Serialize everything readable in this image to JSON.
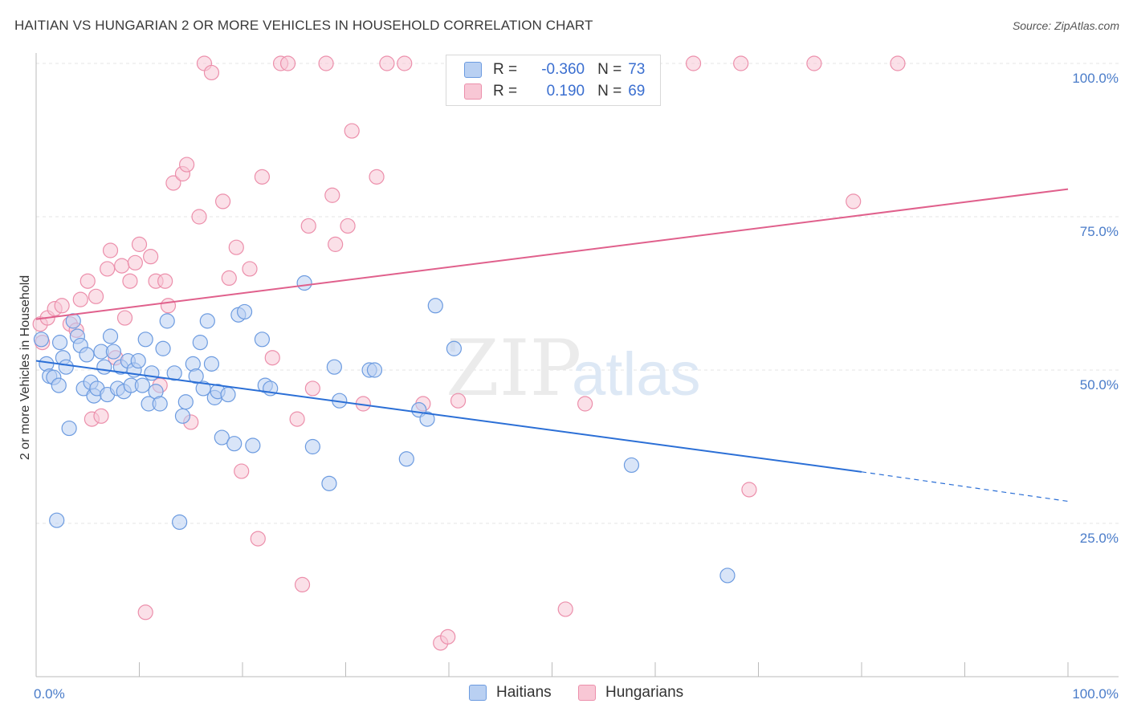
{
  "title": "HAITIAN VS HUNGARIAN 2 OR MORE VEHICLES IN HOUSEHOLD CORRELATION CHART",
  "source": "Source: ZipAtlas.com",
  "watermark": {
    "zip": "ZIP",
    "atlas": "atlas"
  },
  "legend": {
    "rows": [
      {
        "r_label": "R =",
        "r_value": "-0.360",
        "n_label": "N =",
        "n_value": "73",
        "fill": "#b9d0f2",
        "stroke": "#6c9be0"
      },
      {
        "r_label": "R =",
        "r_value": "0.190",
        "n_label": "N =",
        "n_value": "69",
        "fill": "#f8c7d5",
        "stroke": "#ec8fab"
      }
    ]
  },
  "bottom_legend": [
    {
      "label": "Haitians",
      "fill": "#b9d0f2",
      "stroke": "#6c9be0"
    },
    {
      "label": "Hungarians",
      "fill": "#f8c7d5",
      "stroke": "#ec8fab"
    }
  ],
  "chart_data": {
    "type": "scatter",
    "title": "HAITIAN VS HUNGARIAN 2 OR MORE VEHICLES IN HOUSEHOLD CORRELATION CHART",
    "xlabel": "",
    "ylabel": "2 or more Vehicles in Household",
    "xlim": [
      0,
      100
    ],
    "ylim": [
      0,
      100
    ],
    "x_tick_labels": [
      "0.0%",
      "100.0%"
    ],
    "y_tick_labels": [
      {
        "value": 25,
        "label": "25.0%"
      },
      {
        "value": 50,
        "label": "50.0%"
      },
      {
        "value": 75,
        "label": "75.0%"
      },
      {
        "value": 100,
        "label": "100.0%"
      }
    ],
    "grid": true,
    "legend_position": "top-center",
    "series": [
      {
        "name": "Haitians",
        "color": "#6c9be0",
        "fill": "#b9d0f2",
        "line_color": "#2b6fd6",
        "trend": {
          "x0": 0,
          "y0": 51.5,
          "x1": 80,
          "y1": 33.4,
          "dash_to_x": 100,
          "dash_to_y": 28.6
        },
        "points": [
          [
            0.5,
            55.0
          ],
          [
            1.0,
            51.0
          ],
          [
            1.3,
            49.0
          ],
          [
            1.7,
            48.8
          ],
          [
            2.0,
            25.5
          ],
          [
            2.2,
            47.5
          ],
          [
            2.3,
            54.5
          ],
          [
            2.6,
            52.0
          ],
          [
            2.9,
            50.5
          ],
          [
            3.2,
            40.5
          ],
          [
            3.6,
            58.0
          ],
          [
            4.0,
            55.5
          ],
          [
            4.3,
            54.0
          ],
          [
            4.6,
            47.0
          ],
          [
            4.9,
            52.5
          ],
          [
            5.3,
            48.0
          ],
          [
            5.6,
            45.8
          ],
          [
            5.9,
            47.0
          ],
          [
            6.3,
            53.0
          ],
          [
            6.6,
            50.5
          ],
          [
            6.9,
            46.0
          ],
          [
            7.2,
            55.5
          ],
          [
            7.5,
            53.0
          ],
          [
            7.9,
            47.0
          ],
          [
            8.2,
            50.5
          ],
          [
            8.5,
            46.5
          ],
          [
            8.9,
            51.5
          ],
          [
            9.2,
            47.5
          ],
          [
            9.5,
            50.0
          ],
          [
            9.9,
            51.5
          ],
          [
            10.3,
            47.5
          ],
          [
            10.6,
            55.0
          ],
          [
            10.9,
            44.5
          ],
          [
            11.2,
            49.5
          ],
          [
            11.6,
            46.5
          ],
          [
            12.0,
            44.5
          ],
          [
            12.3,
            53.5
          ],
          [
            12.7,
            58.0
          ],
          [
            13.4,
            49.5
          ],
          [
            13.9,
            25.2
          ],
          [
            14.2,
            42.5
          ],
          [
            14.5,
            44.8
          ],
          [
            15.2,
            51.0
          ],
          [
            15.5,
            49.0
          ],
          [
            15.9,
            54.5
          ],
          [
            16.2,
            47.0
          ],
          [
            16.6,
            58.0
          ],
          [
            17.0,
            51.0
          ],
          [
            17.3,
            45.5
          ],
          [
            17.6,
            46.5
          ],
          [
            18.0,
            39.0
          ],
          [
            18.6,
            46.0
          ],
          [
            19.2,
            38.0
          ],
          [
            19.6,
            59.0
          ],
          [
            20.2,
            59.5
          ],
          [
            21.0,
            37.7
          ],
          [
            21.9,
            55.0
          ],
          [
            22.2,
            47.5
          ],
          [
            22.7,
            47.0
          ],
          [
            26.0,
            64.2
          ],
          [
            26.8,
            37.5
          ],
          [
            28.4,
            31.5
          ],
          [
            28.9,
            50.5
          ],
          [
            29.4,
            45.0
          ],
          [
            32.3,
            50.0
          ],
          [
            32.8,
            50.0
          ],
          [
            35.9,
            35.5
          ],
          [
            37.1,
            43.5
          ],
          [
            37.9,
            42.0
          ],
          [
            38.7,
            60.5
          ],
          [
            40.5,
            53.5
          ],
          [
            57.7,
            34.5
          ],
          [
            67.0,
            16.5
          ]
        ]
      },
      {
        "name": "Hungarians",
        "color": "#ec8fab",
        "fill": "#f8c7d5",
        "line_color": "#e0608c",
        "trend": {
          "x0": 0,
          "y0": 58.3,
          "x1": 100,
          "y1": 79.5
        },
        "points": [
          [
            0.4,
            57.5
          ],
          [
            0.6,
            54.5
          ],
          [
            1.1,
            58.5
          ],
          [
            1.8,
            60.0
          ],
          [
            2.5,
            60.5
          ],
          [
            3.3,
            57.5
          ],
          [
            3.9,
            56.5
          ],
          [
            4.3,
            61.5
          ],
          [
            5.0,
            64.5
          ],
          [
            5.4,
            42.0
          ],
          [
            5.8,
            62.0
          ],
          [
            6.3,
            42.5
          ],
          [
            6.9,
            66.5
          ],
          [
            7.2,
            69.5
          ],
          [
            7.7,
            52.0
          ],
          [
            8.3,
            67.0
          ],
          [
            8.6,
            58.5
          ],
          [
            9.1,
            64.5
          ],
          [
            9.6,
            67.5
          ],
          [
            10.0,
            70.5
          ],
          [
            10.6,
            10.5
          ],
          [
            11.1,
            68.5
          ],
          [
            11.6,
            64.5
          ],
          [
            12.0,
            47.5
          ],
          [
            12.5,
            64.5
          ],
          [
            12.8,
            60.5
          ],
          [
            13.3,
            80.5
          ],
          [
            14.2,
            82.0
          ],
          [
            14.6,
            83.5
          ],
          [
            15.0,
            41.5
          ],
          [
            15.8,
            75.0
          ],
          [
            16.3,
            100.0
          ],
          [
            17.0,
            98.5
          ],
          [
            18.1,
            77.5
          ],
          [
            18.7,
            65.0
          ],
          [
            19.4,
            70.0
          ],
          [
            19.9,
            33.5
          ],
          [
            20.7,
            66.5
          ],
          [
            21.5,
            22.5
          ],
          [
            21.9,
            81.5
          ],
          [
            22.9,
            52.0
          ],
          [
            23.7,
            100.0
          ],
          [
            24.4,
            100.0
          ],
          [
            25.3,
            42.0
          ],
          [
            25.8,
            15.0
          ],
          [
            26.4,
            73.5
          ],
          [
            26.8,
            47.0
          ],
          [
            28.1,
            100.0
          ],
          [
            28.7,
            78.5
          ],
          [
            29.0,
            70.5
          ],
          [
            30.2,
            73.5
          ],
          [
            30.6,
            89.0
          ],
          [
            31.7,
            44.5
          ],
          [
            33.0,
            81.5
          ],
          [
            34.0,
            100.0
          ],
          [
            35.7,
            100.0
          ],
          [
            37.5,
            44.5
          ],
          [
            39.2,
            5.5
          ],
          [
            39.9,
            6.5
          ],
          [
            40.9,
            45.0
          ],
          [
            51.3,
            11.0
          ],
          [
            53.2,
            44.5
          ],
          [
            56.6,
            94.5
          ],
          [
            63.7,
            100.0
          ],
          [
            68.3,
            100.0
          ],
          [
            69.1,
            30.5
          ],
          [
            75.4,
            100.0
          ],
          [
            79.2,
            77.5
          ],
          [
            83.5,
            100.0
          ]
        ]
      }
    ]
  }
}
